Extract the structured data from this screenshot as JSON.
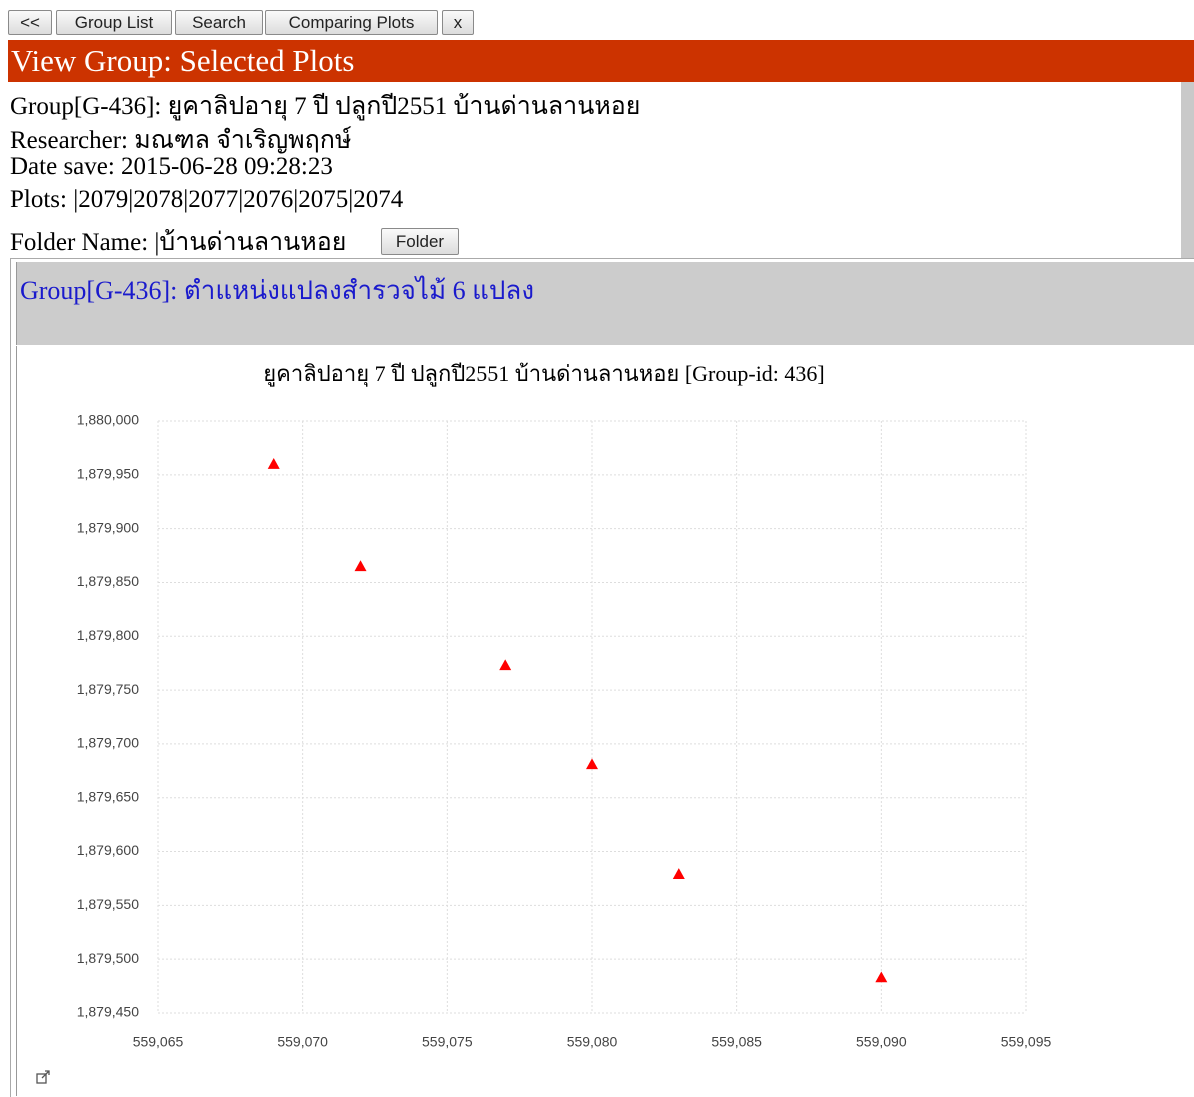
{
  "toolbar": {
    "buttons": [
      "<<",
      "Group List",
      "Search",
      "Comparing Plots",
      "x"
    ]
  },
  "header": {
    "title": "View Group: Selected Plots"
  },
  "info": {
    "lines": [
      "Group[G-436]: ยูคาลิปอายุ 7 ปี ปลูกปี2551 บ้านด่านลานหอย",
      "Researcher: มณฑล จำเริญพฤกษ์",
      "Date save: 2015-06-28 09:28:23",
      "Plots: |2079|2078|2077|2076|2075|2074",
      "Folder Name: |บ้านด่านลานหอย"
    ],
    "folder_button": "Folder"
  },
  "panel": {
    "title": "Group[G-436]: ตำแหน่งแปลงสำรวจไม้ 6 แปลง"
  },
  "chart_data": {
    "type": "scatter",
    "title": "ยูคาลิปอายุ 7 ปี ปลูกปี2551 บ้านด่านลานหอย [Group-id: 436]",
    "x": [
      559069,
      559072,
      559077,
      559080,
      559083,
      559090
    ],
    "values": [
      1879960,
      1879865,
      1879773,
      1879681,
      1879579,
      1879483
    ],
    "color": "#ff0000",
    "marker": "triangle",
    "xlim": [
      559065,
      559095
    ],
    "xticks": [
      {
        "value": 559065,
        "label": "559,065"
      },
      {
        "value": 559070,
        "label": "559,070"
      },
      {
        "value": 559075,
        "label": "559,075"
      },
      {
        "value": 559080,
        "label": "559,080"
      },
      {
        "value": 559085,
        "label": "559,085"
      },
      {
        "value": 559090,
        "label": "559,090"
      },
      {
        "value": 559095,
        "label": "559,095"
      }
    ],
    "ylim": [
      1879450,
      1880000
    ],
    "yticks": [
      {
        "value": 1879450,
        "label": "1,879,450"
      },
      {
        "value": 1879500,
        "label": "1,879,500"
      },
      {
        "value": 1879550,
        "label": "1,879,550"
      },
      {
        "value": 1879600,
        "label": "1,879,600"
      },
      {
        "value": 1879650,
        "label": "1,879,650"
      },
      {
        "value": 1879700,
        "label": "1,879,700"
      },
      {
        "value": 1879750,
        "label": "1,879,750"
      },
      {
        "value": 1879800,
        "label": "1,879,800"
      },
      {
        "value": 1879850,
        "label": "1,879,850"
      },
      {
        "value": 1879900,
        "label": "1,879,900"
      },
      {
        "value": 1879950,
        "label": "1,879,950"
      },
      {
        "value": 1880000,
        "label": "1,880,000"
      }
    ],
    "grid": true
  }
}
